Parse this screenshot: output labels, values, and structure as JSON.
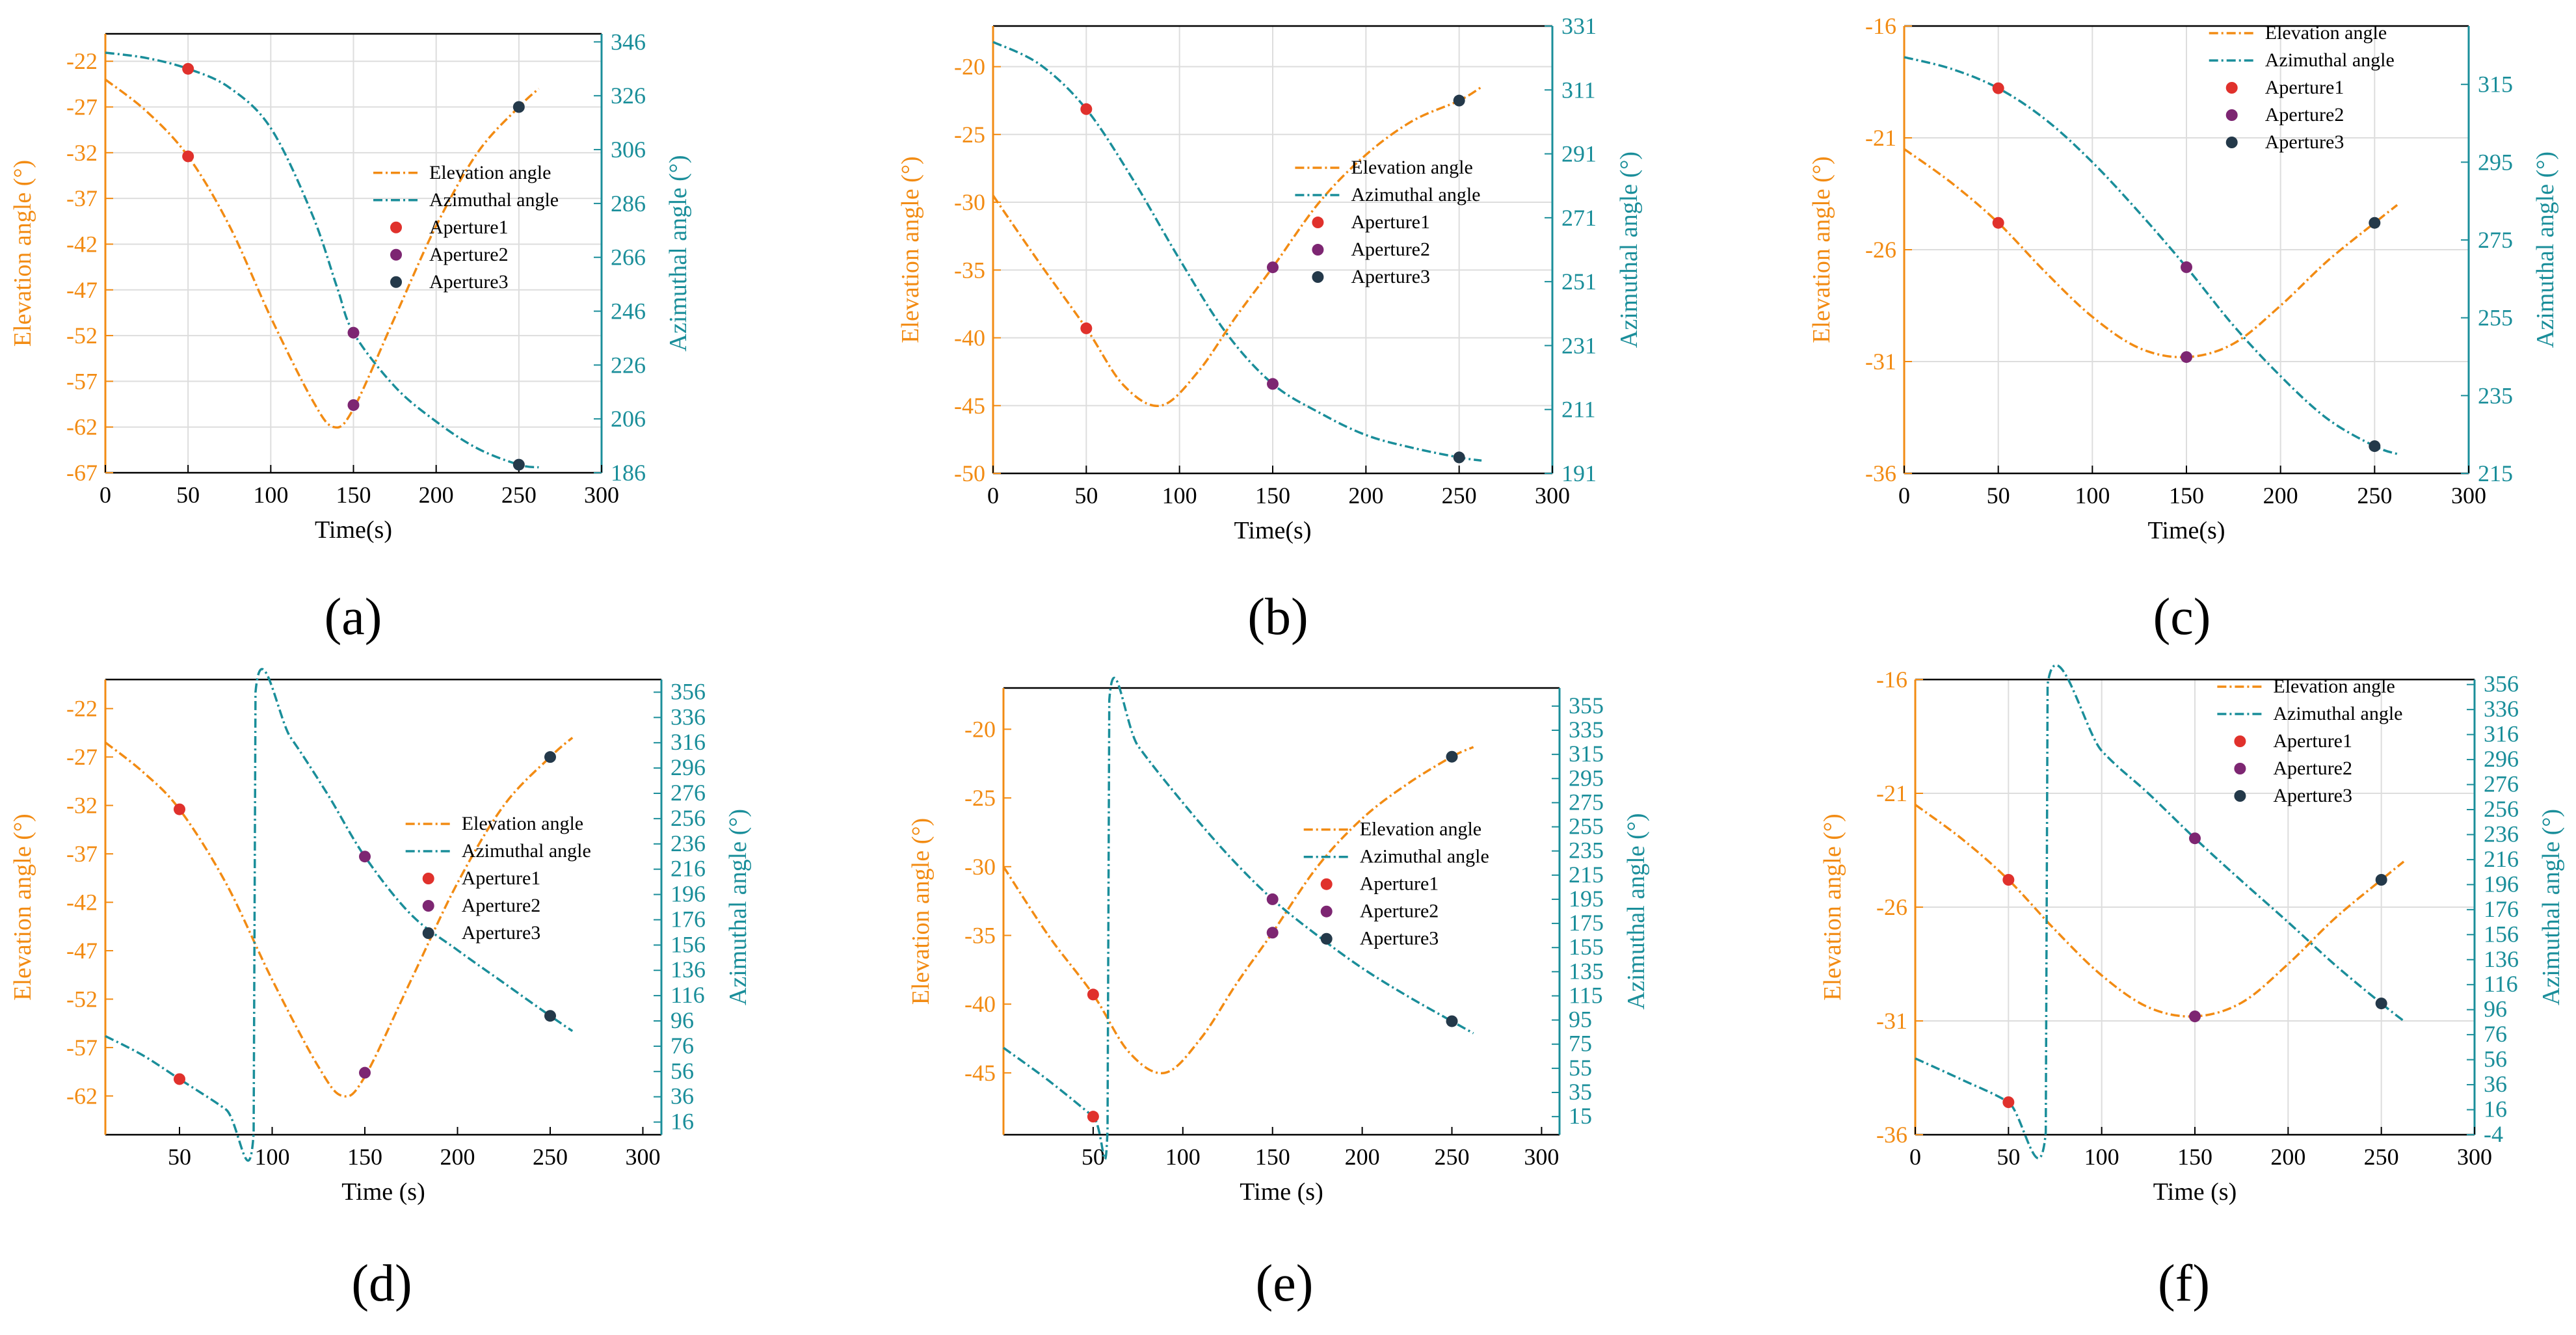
{
  "colors": {
    "elevation": "#f28b13",
    "azimuth": "#1a8e9a",
    "aperture1": "#e0312c",
    "aperture2": "#7d2672",
    "aperture3": "#24394a",
    "grid": "#dddddd",
    "axis": "#000000"
  },
  "chart_data": [
    {
      "panel_label": "(a)",
      "type": "line",
      "xlabel": "Time(s)",
      "ylabel_left": "Elevation angle (°)",
      "ylabel_right": "Azimuthal angle (°)",
      "xlim": [
        0,
        300
      ],
      "xticks": [
        "0",
        "50",
        "100",
        "150",
        "200",
        "250",
        "300"
      ],
      "xtick_values": [
        0,
        50,
        100,
        150,
        200,
        250,
        300
      ],
      "ylim_left": [
        -67,
        -19
      ],
      "yticks_left": [
        "-22",
        "-27",
        "-32",
        "-37",
        "-42",
        "-47",
        "-52",
        "-57",
        "-62",
        "-67"
      ],
      "ytick_values_left": [
        -22,
        -27,
        -32,
        -37,
        -42,
        -47,
        -52,
        -57,
        -62,
        -67
      ],
      "ylim_right": [
        186,
        349
      ],
      "yticks_right": [
        "346",
        "326",
        "306",
        "286",
        "266",
        "246",
        "226",
        "206",
        "186"
      ],
      "ytick_values_right": [
        346,
        326,
        306,
        286,
        266,
        246,
        226,
        206,
        186
      ],
      "grid": true,
      "legend_position": "center-right",
      "legend": [
        "Elevation angle",
        "Azimuthal angle",
        "Aperture1",
        "Aperture2",
        "Aperture3"
      ],
      "elevation": {
        "x": [
          0,
          25,
          50,
          75,
          100,
          125,
          138,
          150,
          175,
          200,
          225,
          250,
          262
        ],
        "y": [
          -24,
          -27.5,
          -32.4,
          -40,
          -50,
          -59,
          -62,
          -60,
          -50,
          -40,
          -32,
          -27,
          -25
        ]
      },
      "azimuth": {
        "x": [
          0,
          25,
          50,
          75,
          100,
          125,
          140,
          150,
          175,
          200,
          225,
          250,
          262
        ],
        "y": [
          342,
          340,
          336,
          329,
          314,
          282,
          255,
          238,
          218,
          205,
          195,
          189,
          188
        ]
      },
      "apertures": [
        {
          "name": "Aperture1",
          "t": 50,
          "elevation": -32.4,
          "azimuth": 336
        },
        {
          "name": "Aperture2",
          "t": 150,
          "elevation": -59.6,
          "azimuth": 238
        },
        {
          "name": "Aperture3",
          "t": 250,
          "elevation": -27,
          "azimuth": 189
        }
      ]
    },
    {
      "panel_label": "(b)",
      "type": "line",
      "xlabel": "Time(s)",
      "ylabel_left": "Elevation angle (°)",
      "ylabel_right": "Azimuthal angle (°)",
      "xlim": [
        0,
        300
      ],
      "xticks": [
        "0",
        "50",
        "100",
        "150",
        "200",
        "250",
        "300"
      ],
      "xtick_values": [
        0,
        50,
        100,
        150,
        200,
        250,
        300
      ],
      "ylim_left": [
        -50,
        -17
      ],
      "yticks_left": [
        "-20",
        "-25",
        "-30",
        "-35",
        "-40",
        "-45",
        "-50"
      ],
      "ytick_values_left": [
        -20,
        -25,
        -30,
        -35,
        -40,
        -45,
        -50
      ],
      "ylim_right": [
        191,
        331
      ],
      "yticks_right": [
        "331",
        "311",
        "291",
        "271",
        "251",
        "231",
        "211",
        "191"
      ],
      "ytick_values_right": [
        331,
        311,
        291,
        271,
        251,
        231,
        211,
        191
      ],
      "grid": true,
      "legend_position": "center-right",
      "legend": [
        "Elevation angle",
        "Azimuthal angle",
        "Aperture1",
        "Aperture2",
        "Aperture3"
      ],
      "elevation": {
        "x": [
          0,
          25,
          50,
          70,
          90,
          110,
          130,
          150,
          175,
          200,
          225,
          250,
          262
        ],
        "y": [
          -29.5,
          -34.5,
          -39.3,
          -43.5,
          -45,
          -42.5,
          -38.5,
          -34.8,
          -30,
          -26.5,
          -24,
          -22.5,
          -21.5
        ],
        "dummy": null
      },
      "azimuth": {
        "x": [
          0,
          25,
          50,
          75,
          100,
          125,
          150,
          175,
          200,
          225,
          250,
          262
        ],
        "y": [
          326,
          319,
          305,
          283,
          258,
          235,
          219,
          210,
          203,
          199,
          196,
          195
        ]
      },
      "apertures": [
        {
          "name": "Aperture1",
          "t": 50,
          "elevation": -39.3,
          "azimuth": 305
        },
        {
          "name": "Aperture2",
          "t": 150,
          "elevation": -34.8,
          "azimuth": 219
        },
        {
          "name": "Aperture3",
          "t": 250,
          "elevation": -22.5,
          "azimuth": 196
        }
      ]
    },
    {
      "panel_label": "(c)",
      "type": "line",
      "xlabel": "Time(s)",
      "ylabel_left": "Elevation angle (°)",
      "ylabel_right": "Azimuthal angle (°)",
      "xlim": [
        0,
        300
      ],
      "xticks": [
        "0",
        "50",
        "100",
        "150",
        "200",
        "250",
        "300"
      ],
      "xtick_values": [
        0,
        50,
        100,
        150,
        200,
        250,
        300
      ],
      "ylim_left": [
        -36,
        -16
      ],
      "yticks_left": [
        "-16",
        "-21",
        "-26",
        "-31",
        "-36"
      ],
      "ytick_values_left": [
        -16,
        -21,
        -26,
        -31,
        -36
      ],
      "ylim_right": [
        215,
        330
      ],
      "yticks_right": [
        "315",
        "295",
        "275",
        "255",
        "235",
        "215"
      ],
      "ytick_values_right": [
        315,
        295,
        275,
        255,
        235,
        215
      ],
      "grid": true,
      "legend_position": "top-right",
      "legend": [
        "Elevation angle",
        "Azimuthal angle",
        "Aperture1",
        "Aperture2",
        "Aperture3"
      ],
      "elevation": {
        "x": [
          0,
          25,
          50,
          75,
          100,
          125,
          150,
          175,
          200,
          225,
          250,
          262
        ],
        "y": [
          -21.5,
          -23,
          -24.8,
          -27,
          -29,
          -30.4,
          -30.8,
          -30.2,
          -28.5,
          -26.5,
          -24.8,
          -24
        ]
      },
      "azimuth": {
        "x": [
          0,
          25,
          50,
          75,
          100,
          125,
          150,
          175,
          200,
          225,
          250,
          262
        ],
        "y": [
          322,
          319,
          314,
          306,
          295,
          282,
          268,
          253,
          240,
          229,
          222,
          220
        ]
      },
      "apertures": [
        {
          "name": "Aperture1",
          "t": 50,
          "elevation": -24.8,
          "azimuth": 314
        },
        {
          "name": "Aperture2",
          "t": 150,
          "elevation": -30.8,
          "azimuth": 268
        },
        {
          "name": "Aperture3",
          "t": 250,
          "elevation": -24.8,
          "azimuth": 222
        }
      ]
    },
    {
      "panel_label": "(d)",
      "type": "line",
      "xlabel": "Time (s)",
      "ylabel_left": "Elevation angle (°)",
      "ylabel_right": "Azimuthal angle (°)",
      "xlim": [
        10,
        310
      ],
      "xticks": [
        "50",
        "100",
        "150",
        "200",
        "250",
        "300"
      ],
      "xtick_values": [
        50,
        100,
        150,
        200,
        250,
        300
      ],
      "ylim_left": [
        -66,
        -19
      ],
      "yticks_left": [
        "-22",
        "-27",
        "-32",
        "-37",
        "-42",
        "-47",
        "-52",
        "-57",
        "-62"
      ],
      "ytick_values_left": [
        -22,
        -27,
        -32,
        -37,
        -42,
        -47,
        -52,
        -57,
        -62
      ],
      "ylim_right": [
        6,
        366
      ],
      "yticks_right": [
        "356",
        "336",
        "316",
        "296",
        "276",
        "256",
        "236",
        "216",
        "196",
        "176",
        "156",
        "136",
        "116",
        "96",
        "76",
        "56",
        "36",
        "16"
      ],
      "ytick_values_right": [
        356,
        336,
        316,
        296,
        276,
        256,
        236,
        216,
        196,
        176,
        156,
        136,
        116,
        96,
        76,
        56,
        36,
        16
      ],
      "grid": false,
      "legend_position": "center-right",
      "legend": [
        "Elevation angle",
        "Azimuthal angle",
        "Aperture1",
        "Aperture2",
        "Aperture3"
      ],
      "elevation": {
        "x": [
          10,
          30,
          50,
          75,
          100,
          125,
          138,
          150,
          175,
          200,
          225,
          250,
          262
        ],
        "y": [
          -25.5,
          -28.5,
          -32.4,
          -40,
          -50,
          -59,
          -62,
          -60,
          -50,
          -40,
          -32,
          -27,
          -25
        ]
      },
      "azimuth": {
        "x": [
          10,
          30,
          50,
          75,
          90,
          91,
          110,
          130,
          150,
          175,
          200,
          225,
          250,
          262
        ],
        "y": [
          84,
          69,
          50,
          26,
          7,
          356,
          320,
          275,
          226,
          180,
          152,
          126,
          100,
          88
        ]
      },
      "apertures": [
        {
          "name": "Aperture1",
          "t": 50,
          "elevation": -32.4,
          "azimuth": 50
        },
        {
          "name": "Aperture2",
          "t": 150,
          "elevation": -59.6,
          "azimuth": 226
        },
        {
          "name": "Aperture3",
          "t": 250,
          "elevation": -27,
          "azimuth": 100
        }
      ]
    },
    {
      "panel_label": "(e)",
      "type": "line",
      "xlabel": "Time (s)",
      "ylabel_left": "Elevation angle (°)",
      "ylabel_right": "Azimuthal angle (°)",
      "xlim": [
        0,
        310
      ],
      "xticks": [
        "50",
        "100",
        "150",
        "200",
        "250",
        "300"
      ],
      "xtick_values": [
        50,
        100,
        150,
        200,
        250,
        300
      ],
      "ylim_left": [
        -49.5,
        -17
      ],
      "yticks_left": [
        "-20",
        "-25",
        "-30",
        "-35",
        "-40",
        "-45"
      ],
      "ytick_values_left": [
        -20,
        -25,
        -30,
        -35,
        -40,
        -45
      ],
      "ylim_right": [
        0,
        370
      ],
      "yticks_right": [
        "355",
        "335",
        "315",
        "295",
        "275",
        "255",
        "235",
        "215",
        "195",
        "175",
        "155",
        "135",
        "115",
        "95",
        "75",
        "55",
        "35",
        "15"
      ],
      "ytick_values_right": [
        355,
        335,
        315,
        295,
        275,
        255,
        235,
        215,
        195,
        175,
        155,
        135,
        115,
        95,
        75,
        55,
        35,
        15
      ],
      "grid": false,
      "legend_position": "center-right",
      "legend": [
        "Elevation angle",
        "Azimuthal angle",
        "Aperture1",
        "Aperture2",
        "Aperture3"
      ],
      "elevation": {
        "x": [
          0,
          25,
          50,
          70,
          90,
          110,
          130,
          150,
          175,
          200,
          225,
          250,
          262
        ],
        "y": [
          -30,
          -35,
          -39.3,
          -43.5,
          -45,
          -42.5,
          -38.5,
          -34.8,
          -30,
          -26.5,
          -24,
          -22,
          -21.3
        ]
      },
      "azimuth": {
        "x": [
          0,
          25,
          50,
          58,
          59,
          75,
          100,
          125,
          150,
          175,
          200,
          225,
          250,
          262
        ],
        "y": [
          72,
          45,
          15,
          4,
          360,
          322,
          275,
          232,
          195,
          165,
          138,
          115,
          94,
          84
        ]
      },
      "apertures": [
        {
          "name": "Aperture1",
          "t": 50,
          "elevation": -39.3,
          "azimuth": 15
        },
        {
          "name": "Aperture2",
          "t": 150,
          "elevation": -34.8,
          "azimuth": 195
        },
        {
          "name": "Aperture3",
          "t": 250,
          "elevation": -22,
          "azimuth": 94
        }
      ]
    },
    {
      "panel_label": "(f)",
      "type": "line",
      "xlabel": "Time (s)",
      "ylabel_left": "Elevation angle (°)",
      "ylabel_right": "Azimuthal angle (°)",
      "xlim": [
        0,
        300
      ],
      "xticks": [
        "0",
        "50",
        "100",
        "150",
        "200",
        "250",
        "300"
      ],
      "xtick_values": [
        0,
        50,
        100,
        150,
        200,
        250,
        300
      ],
      "ylim_left": [
        -36,
        -16
      ],
      "yticks_left": [
        "-16",
        "-21",
        "-26",
        "-31",
        "-36"
      ],
      "ytick_values_left": [
        -16,
        -21,
        -26,
        -31,
        -36
      ],
      "ylim_right": [
        -4,
        360
      ],
      "yticks_right": [
        "356",
        "336",
        "316",
        "296",
        "276",
        "256",
        "236",
        "216",
        "196",
        "176",
        "156",
        "136",
        "116",
        "96",
        "76",
        "56",
        "36",
        "16",
        "-4"
      ],
      "ytick_values_right": [
        356,
        336,
        316,
        296,
        276,
        256,
        236,
        216,
        196,
        176,
        156,
        136,
        116,
        96,
        76,
        56,
        36,
        16,
        -4
      ],
      "grid": true,
      "legend_position": "top-right",
      "legend": [
        "Elevation angle",
        "Azimuthal angle",
        "Aperture1",
        "Aperture2",
        "Aperture3"
      ],
      "elevation": {
        "x": [
          0,
          25,
          50,
          75,
          100,
          125,
          150,
          175,
          200,
          225,
          250,
          262
        ],
        "y": [
          -21.5,
          -23,
          -24.8,
          -27,
          -29,
          -30.4,
          -30.8,
          -30.2,
          -28.5,
          -26.5,
          -24.8,
          -24
        ]
      },
      "azimuth": {
        "x": [
          0,
          25,
          50,
          70,
          71,
          100,
          125,
          150,
          175,
          200,
          225,
          250,
          262
        ],
        "y": [
          57,
          40,
          22,
          -2,
          356,
          303,
          269,
          233,
          199,
          166,
          132,
          101,
          87
        ]
      },
      "apertures": [
        {
          "name": "Aperture1",
          "t": 50,
          "elevation": -24.8,
          "azimuth": 22
        },
        {
          "name": "Aperture2",
          "t": 150,
          "elevation": -30.8,
          "azimuth": 233
        },
        {
          "name": "Aperture3",
          "t": 250,
          "elevation": -24.8,
          "azimuth": 101
        }
      ]
    }
  ]
}
